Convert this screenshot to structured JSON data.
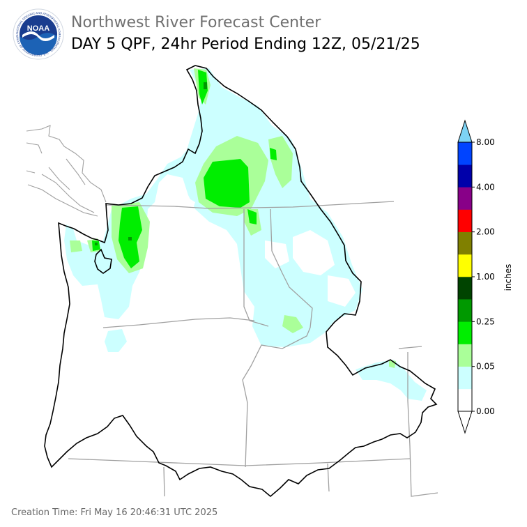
{
  "header": {
    "org_title": "Northwest River Forecast Center",
    "product_title": "DAY 5 QPF, 24hr Period Ending 12Z, 05/21/25"
  },
  "logo": {
    "center_text": "NOAA",
    "ring_text": "NATIONAL OCEANIC AND ATMOSPHERIC ADMINISTRATION · U.S. DEPARTMENT OF COMMERCE",
    "colors": {
      "ring": "#ffffff",
      "outer": "#1a3d8f",
      "sky": "#1c62b5",
      "bird": "#ffffff"
    }
  },
  "colorbar": {
    "unit_label": "inches",
    "tick_labels": [
      "0.00",
      "0.05",
      "0.25",
      "1.00",
      "2.00",
      "4.00",
      "8.00"
    ],
    "bins": [
      {
        "color": "#ffffff"
      },
      {
        "color": "#ccffff"
      },
      {
        "color": "#aaff99"
      },
      {
        "color": "#00ee00"
      },
      {
        "color": "#009900"
      },
      {
        "color": "#004400"
      },
      {
        "color": "#ffff00"
      },
      {
        "color": "#808000"
      },
      {
        "color": "#ff0000"
      },
      {
        "color": "#880088"
      },
      {
        "color": "#0000aa"
      },
      {
        "color": "#0044ff"
      }
    ],
    "over_color": "#7dd3f5",
    "under_color": "#ffffff"
  },
  "map": {
    "boundary_color": "#000000",
    "state_border_color": "#a0a0a0",
    "precip_colors": {
      "light": "#ccffff",
      "moderate": "#aaff99",
      "heavy": "#00ee00",
      "heavier": "#009900"
    }
  },
  "footer": {
    "creation_time": "Creation Time: Fri May 16 20:46:31 UTC 2025"
  }
}
